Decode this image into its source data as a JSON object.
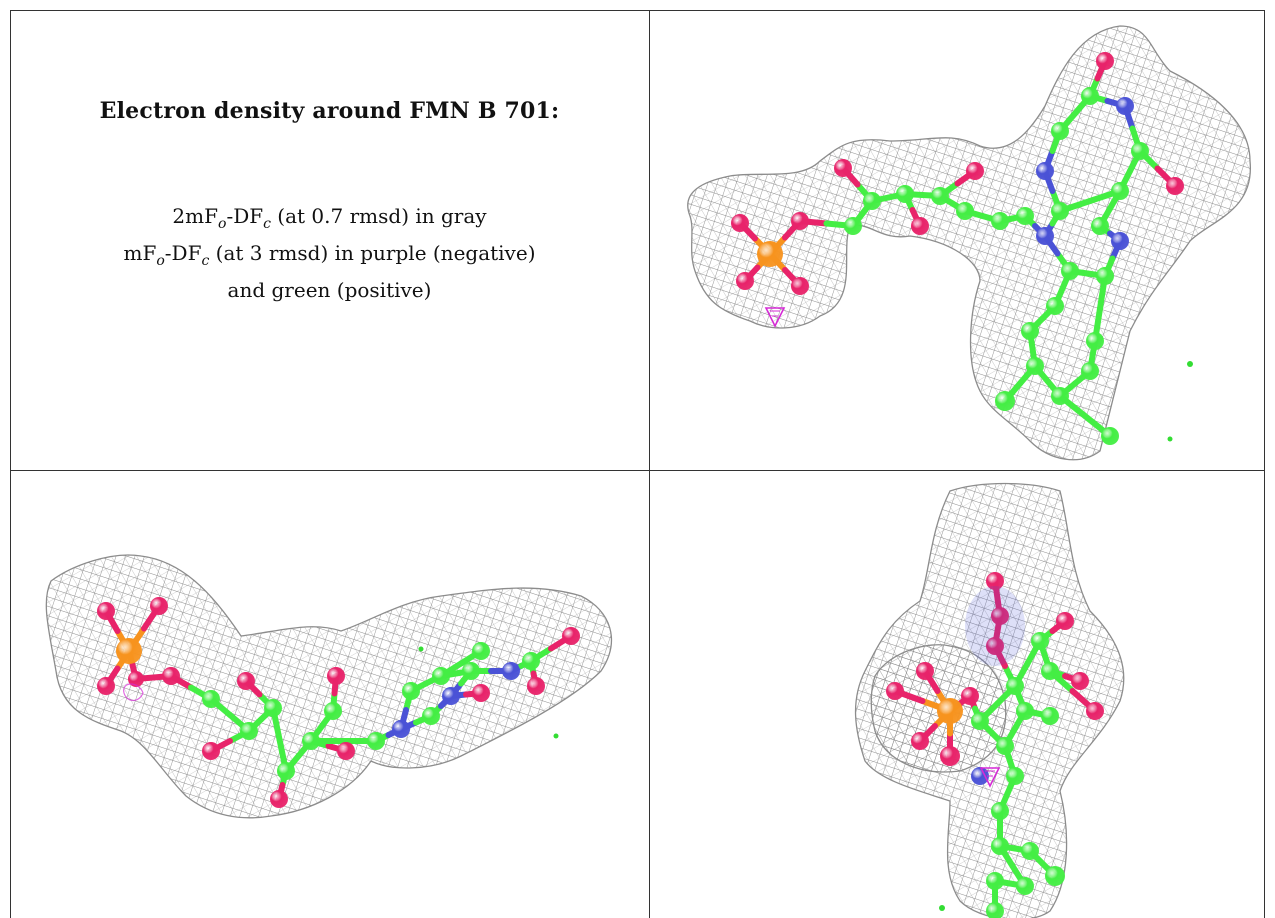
{
  "caption": {
    "title": "Electron density around FMN B 701:",
    "line1": {
      "a": "2mF",
      "b": "o",
      "c": "-DF",
      "d": "c",
      "e": " (at 0.7 rmsd) in gray"
    },
    "line2": {
      "a": "mF",
      "b": "o",
      "c": "-DF",
      "d": "c",
      "e": " (at 3 rmsd) in purple (negative)"
    },
    "line3": "and green (positive)"
  },
  "colors": {
    "mesh": "#8c8c8c",
    "carbon": "#44ee44",
    "oxygen": "#e8236a",
    "nitrogen": "#4a52d6",
    "phosphorus": "#f7931e",
    "negative_density": "#d62bd6",
    "positive_density": "#33dd33"
  },
  "panels": [
    {
      "name": "view-top-right"
    },
    {
      "name": "view-bottom-left"
    },
    {
      "name": "view-bottom-right"
    }
  ]
}
